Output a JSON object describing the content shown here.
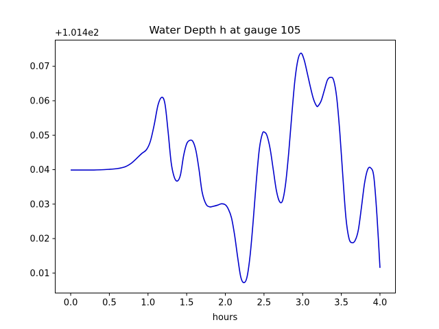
{
  "chart_data": {
    "type": "line",
    "title": "Water Depth h at gauge 105",
    "xlabel": "hours",
    "ylabel": "",
    "y_offset_label": "+1.014e2",
    "xlim": [
      -0.2,
      4.2
    ],
    "ylim": [
      0.0042,
      0.0776
    ],
    "x_ticks": [
      0.0,
      0.5,
      1.0,
      1.5,
      2.0,
      2.5,
      3.0,
      3.5,
      4.0
    ],
    "x_tick_labels": [
      "0.0",
      "0.5",
      "1.0",
      "1.5",
      "2.0",
      "2.5",
      "3.0",
      "3.5",
      "4.0"
    ],
    "y_ticks": [
      0.01,
      0.02,
      0.03,
      0.04,
      0.05,
      0.06,
      0.07
    ],
    "y_tick_labels": [
      "0.01",
      "0.02",
      "0.03",
      "0.04",
      "0.05",
      "0.06",
      "0.07"
    ],
    "grid": false,
    "series": [
      {
        "color": "#0000cc",
        "x": [
          0.0,
          0.3,
          0.5,
          0.6,
          0.7,
          0.78,
          0.85,
          0.92,
          0.98,
          1.03,
          1.08,
          1.13,
          1.18,
          1.22,
          1.26,
          1.3,
          1.34,
          1.38,
          1.42,
          1.46,
          1.5,
          1.54,
          1.58,
          1.62,
          1.66,
          1.7,
          1.75,
          1.8,
          1.85,
          1.9,
          1.95,
          2.0,
          2.04,
          2.08,
          2.12,
          2.16,
          2.2,
          2.24,
          2.28,
          2.32,
          2.36,
          2.4,
          2.44,
          2.48,
          2.51,
          2.54,
          2.58,
          2.62,
          2.66,
          2.7,
          2.74,
          2.78,
          2.82,
          2.86,
          2.9,
          2.94,
          2.98,
          3.02,
          3.06,
          3.1,
          3.14,
          3.18,
          3.2,
          3.24,
          3.28,
          3.32,
          3.36,
          3.4,
          3.44,
          3.48,
          3.52,
          3.56,
          3.6,
          3.64,
          3.68,
          3.72,
          3.76,
          3.8,
          3.84,
          3.88,
          3.92,
          3.96,
          4.0
        ],
        "y": [
          0.0399,
          0.0399,
          0.0401,
          0.0403,
          0.0408,
          0.0418,
          0.0432,
          0.0447,
          0.0458,
          0.0482,
          0.053,
          0.0588,
          0.061,
          0.059,
          0.051,
          0.042,
          0.0378,
          0.0367,
          0.0385,
          0.044,
          0.0475,
          0.0485,
          0.0482,
          0.0455,
          0.04,
          0.0335,
          0.03,
          0.0292,
          0.0294,
          0.0297,
          0.0301,
          0.0298,
          0.0285,
          0.026,
          0.021,
          0.0145,
          0.0088,
          0.0072,
          0.0088,
          0.015,
          0.025,
          0.0365,
          0.046,
          0.0505,
          0.0508,
          0.0498,
          0.046,
          0.04,
          0.034,
          0.0308,
          0.031,
          0.036,
          0.045,
          0.056,
          0.066,
          0.072,
          0.0738,
          0.0718,
          0.068,
          0.064,
          0.0605,
          0.0585,
          0.0585,
          0.06,
          0.063,
          0.066,
          0.0668,
          0.066,
          0.061,
          0.051,
          0.038,
          0.026,
          0.02,
          0.0188,
          0.0195,
          0.0225,
          0.029,
          0.036,
          0.04,
          0.0405,
          0.038,
          0.027,
          0.0115
        ]
      }
    ]
  }
}
